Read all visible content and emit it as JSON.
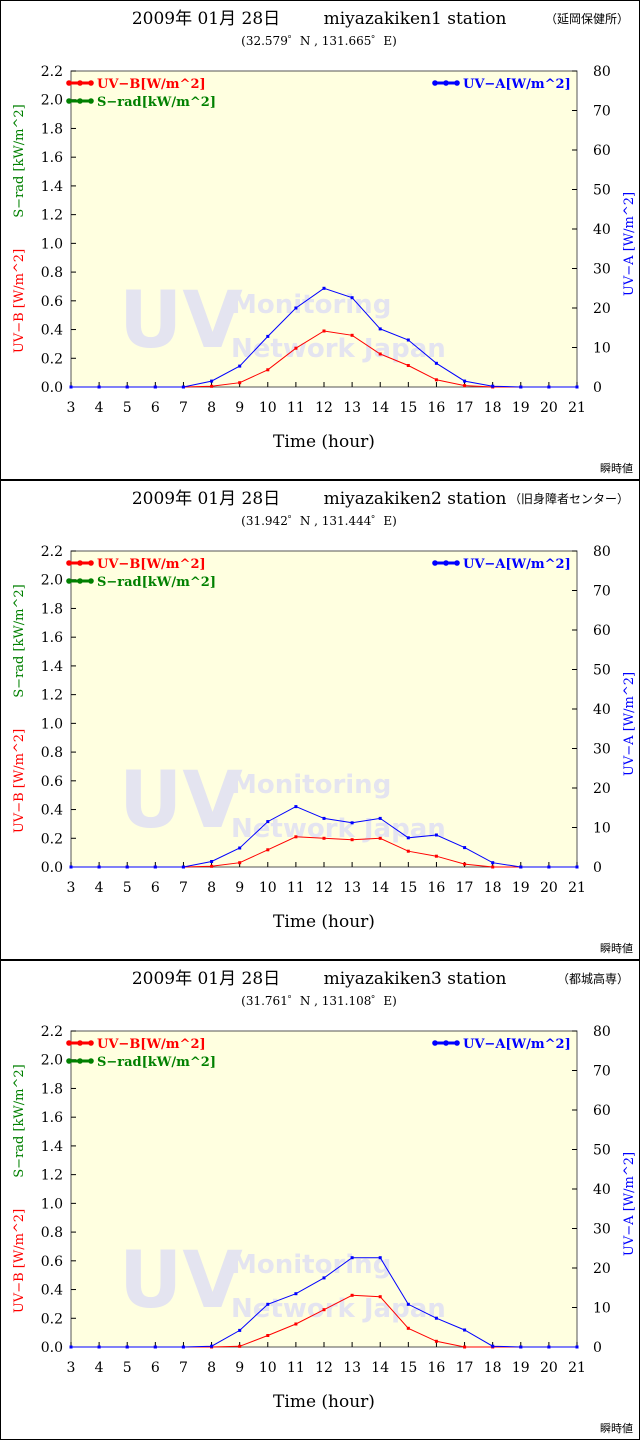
{
  "charts": [
    {
      "date": "2009年 01月 28日",
      "station": "miyazakiken1 station",
      "site": "（延岡保健所）",
      "coords": "(32.579゜N , 131.665゜E)",
      "footer": "瞬時値",
      "watermark_big": "UV",
      "watermark_line1": "Monitoring",
      "watermark_line2": "Network  Japan"
    },
    {
      "date": "2009年 01月 28日",
      "station": "miyazakiken2 station",
      "site": "（旧身障者センター）",
      "coords": "(31.942゜N , 131.444゜E)",
      "footer": "瞬時値",
      "watermark_big": "UV",
      "watermark_line1": "Monitoring",
      "watermark_line2": "Network  Japan"
    },
    {
      "date": "2009年 01月 28日",
      "station": "miyazakiken3 station",
      "site": "（都城高専）",
      "coords": "(31.761゜N , 131.108゜E)",
      "footer": "瞬時値",
      "watermark_big": "UV",
      "watermark_line1": "Monitoring",
      "watermark_line2": "Network  Japan"
    }
  ],
  "colors": {
    "uvb": "#ff0000",
    "srad": "#008000",
    "uva": "#0000ff",
    "plot_bg": "#ffffe0",
    "watermark": "#e4e4f0"
  },
  "chart_data": [
    {
      "type": "line",
      "xlabel": "Time (hour)",
      "ylabel_left_uvb": "UV−B [W/m^2]",
      "ylabel_left_srad": "S−rad [kW/m^2]",
      "ylabel_right": "UV−A [W/m^2]",
      "x": [
        3,
        4,
        5,
        6,
        7,
        8,
        9,
        10,
        11,
        12,
        13,
        14,
        15,
        16,
        17,
        18,
        19,
        20,
        21
      ],
      "xlim": [
        3,
        21
      ],
      "ylim_left": [
        0,
        2.2
      ],
      "ylim_right": [
        0,
        80
      ],
      "yticks_left": [
        "0.0",
        "0.2",
        "0.4",
        "0.6",
        "0.8",
        "1.0",
        "1.2",
        "1.4",
        "1.6",
        "1.8",
        "2.0",
        "2.2"
      ],
      "yticks_right": [
        "0",
        "10",
        "20",
        "30",
        "40",
        "50",
        "60",
        "70",
        "80"
      ],
      "legend_left": [
        "UV−B[W/m^2]",
        "S−rad[kW/m^2]"
      ],
      "legend_right": [
        "UV−A[W/m^2]"
      ],
      "series": [
        {
          "name": "UV−B[W/m^2]",
          "axis": "left",
          "color": "#ff0000",
          "values": [
            0,
            0,
            0,
            0,
            0,
            0.005,
            0.03,
            0.12,
            0.27,
            0.39,
            0.36,
            0.23,
            0.15,
            0.05,
            0.01,
            0,
            0,
            0,
            0
          ]
        },
        {
          "name": "UV−A[W/m^2]",
          "axis": "right",
          "color": "#0000ff",
          "values": [
            0,
            0,
            0,
            0,
            0,
            1.5,
            5.3,
            12.8,
            20,
            25,
            22.6,
            14.7,
            11.9,
            6,
            1.5,
            0.2,
            0,
            0,
            0
          ]
        }
      ]
    },
    {
      "type": "line",
      "xlabel": "Time (hour)",
      "ylabel_left_uvb": "UV−B [W/m^2]",
      "ylabel_left_srad": "S−rad [kW/m^2]",
      "ylabel_right": "UV−A [W/m^2]",
      "x": [
        3,
        4,
        5,
        6,
        7,
        8,
        9,
        10,
        11,
        12,
        13,
        14,
        15,
        16,
        17,
        18,
        19,
        20,
        21
      ],
      "xlim": [
        3,
        21
      ],
      "ylim_left": [
        0,
        2.2
      ],
      "ylim_right": [
        0,
        80
      ],
      "yticks_left": [
        "0.0",
        "0.2",
        "0.4",
        "0.6",
        "0.8",
        "1.0",
        "1.2",
        "1.4",
        "1.6",
        "1.8",
        "2.0",
        "2.2"
      ],
      "yticks_right": [
        "0",
        "10",
        "20",
        "30",
        "40",
        "50",
        "60",
        "70",
        "80"
      ],
      "legend_left": [
        "UV−B[W/m^2]",
        "S−rad[kW/m^2]"
      ],
      "legend_right": [
        "UV−A[W/m^2]"
      ],
      "series": [
        {
          "name": "UV−B[W/m^2]",
          "axis": "left",
          "color": "#ff0000",
          "values": [
            0,
            0,
            0,
            0,
            0,
            0.005,
            0.03,
            0.12,
            0.21,
            0.2,
            0.19,
            0.2,
            0.11,
            0.075,
            0.02,
            0,
            0,
            0,
            0
          ]
        },
        {
          "name": "UV−A[W/m^2]",
          "axis": "right",
          "color": "#0000ff",
          "values": [
            0,
            0,
            0,
            0,
            0,
            1.4,
            4.8,
            11.5,
            15.3,
            12.3,
            11.2,
            12.3,
            7.4,
            8.1,
            4.9,
            1.1,
            0,
            0,
            0
          ]
        }
      ]
    },
    {
      "type": "line",
      "xlabel": "Time (hour)",
      "ylabel_left_uvb": "UV−B [W/m^2]",
      "ylabel_left_srad": "S−rad [kW/m^2]",
      "ylabel_right": "UV−A [W/m^2]",
      "x": [
        3,
        4,
        5,
        6,
        7,
        8,
        9,
        10,
        11,
        12,
        13,
        14,
        15,
        16,
        17,
        18,
        19,
        20,
        21
      ],
      "xlim": [
        3,
        21
      ],
      "ylim_left": [
        0,
        2.2
      ],
      "ylim_right": [
        0,
        80
      ],
      "yticks_left": [
        "0.0",
        "0.2",
        "0.4",
        "0.6",
        "0.8",
        "1.0",
        "1.2",
        "1.4",
        "1.6",
        "1.8",
        "2.0",
        "2.2"
      ],
      "yticks_right": [
        "0",
        "10",
        "20",
        "30",
        "40",
        "50",
        "60",
        "70",
        "80"
      ],
      "legend_left": [
        "UV−B[W/m^2]",
        "S−rad[kW/m^2]"
      ],
      "legend_right": [
        "UV−A[W/m^2]"
      ],
      "series": [
        {
          "name": "UV−B[W/m^2]",
          "axis": "left",
          "color": "#ff0000",
          "values": [
            0,
            0,
            0,
            0,
            0,
            0,
            0.005,
            0.08,
            0.16,
            0.26,
            0.36,
            0.35,
            0.13,
            0.04,
            0,
            0,
            0,
            0,
            0
          ]
        },
        {
          "name": "UV−A[W/m^2]",
          "axis": "right",
          "color": "#0000ff",
          "values": [
            0,
            0,
            0,
            0,
            0,
            0.2,
            4.2,
            10.8,
            13.5,
            17.5,
            22.6,
            22.6,
            10.8,
            7.3,
            4.3,
            0.2,
            0,
            0,
            0
          ]
        }
      ]
    }
  ]
}
